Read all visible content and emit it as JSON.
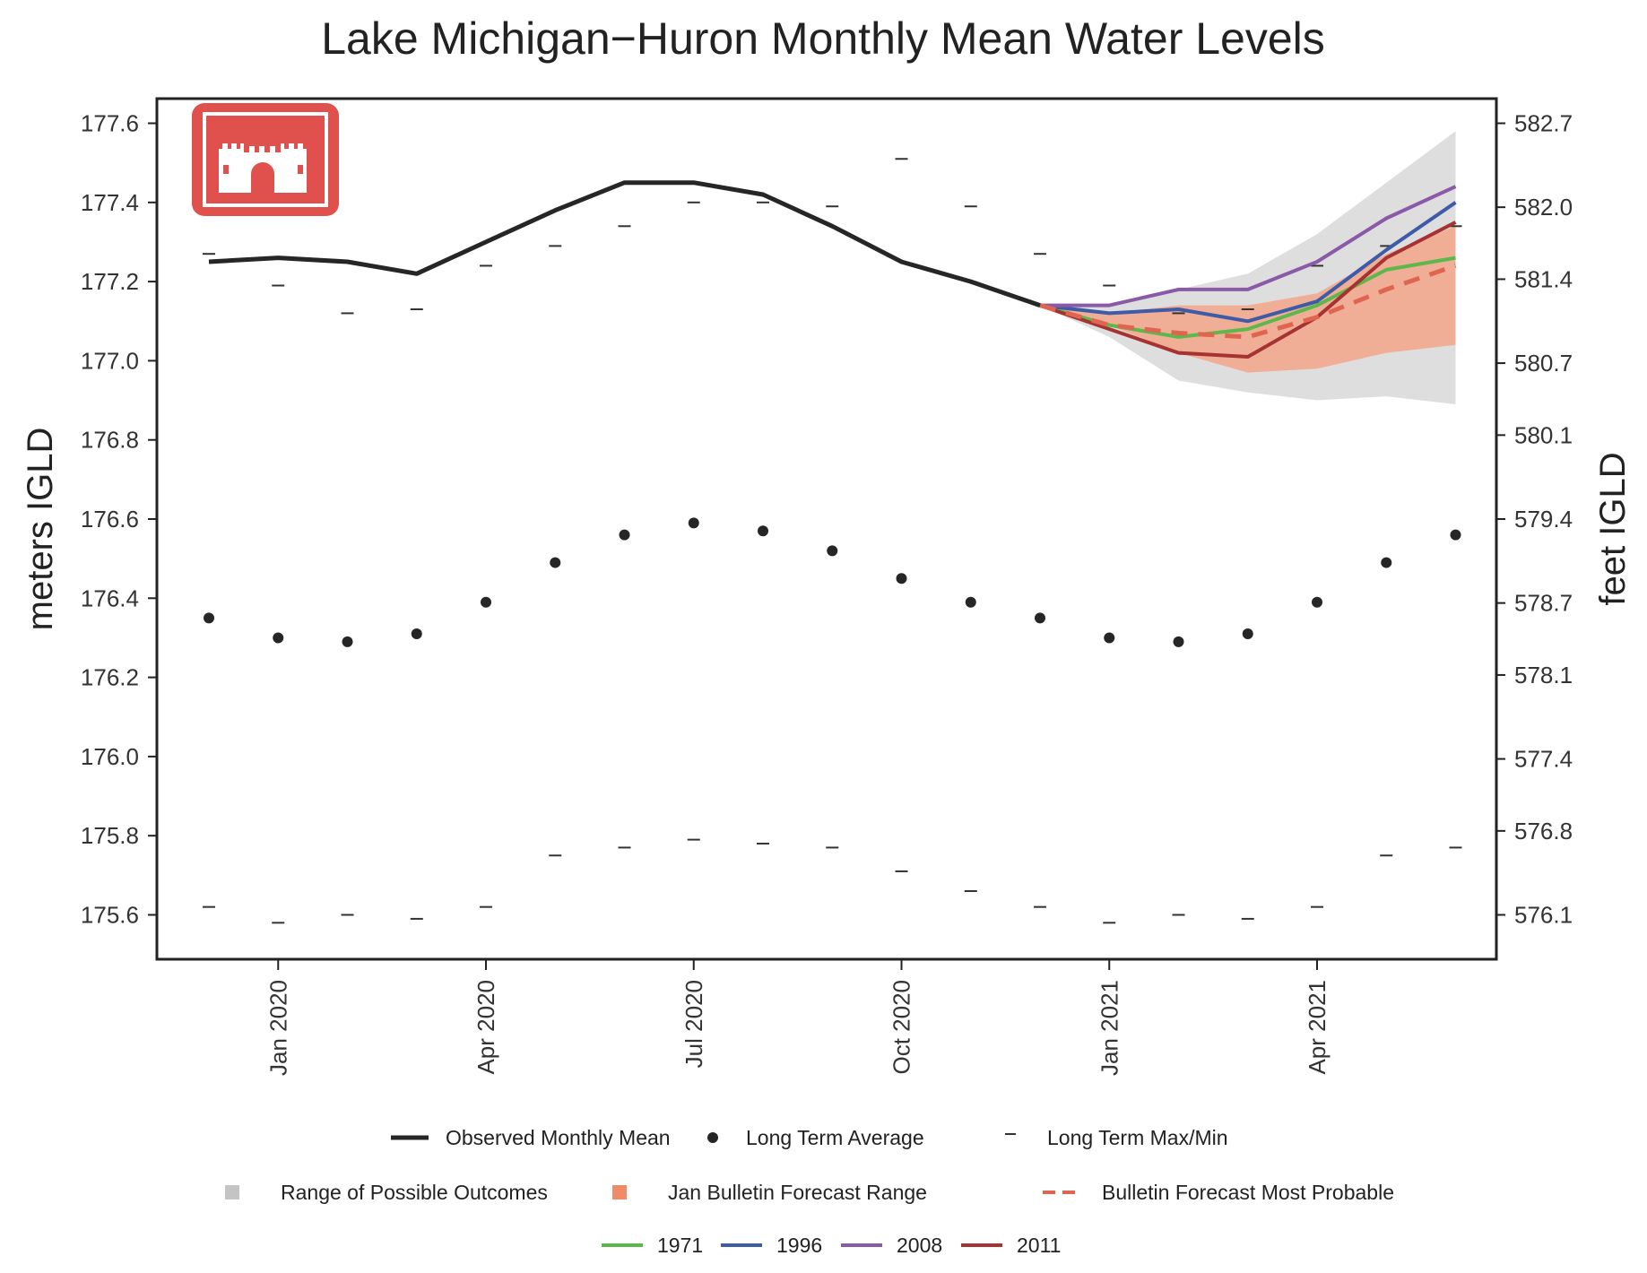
{
  "chart_data": {
    "type": "line",
    "title": "Lake Michigan−Huron Monthly Mean Water Levels",
    "ylabel_left": "meters IGLD",
    "ylabel_right": "feet IGLD",
    "ylim": [
      175.5,
      177.7
    ],
    "y_ticks_left": [
      175.6,
      175.8,
      176.0,
      176.2,
      176.4,
      176.6,
      176.8,
      177.0,
      177.2,
      177.4,
      177.6
    ],
    "y_tick_labels_left": [
      "175.6",
      "175.8",
      "176.0",
      "176.2",
      "176.4",
      "176.6",
      "176.8",
      "177.0",
      "177.2",
      "177.4",
      "177.6"
    ],
    "y_ticks_right": [
      576.1,
      576.8,
      577.4,
      578.1,
      578.7,
      579.4,
      580.1,
      580.7,
      581.4,
      582.0,
      582.7
    ],
    "y_tick_labels_right": [
      "576.1",
      "576.8",
      "577.4",
      "578.1",
      "578.7",
      "579.4",
      "580.1",
      "580.7",
      "581.4",
      "582.0",
      "582.7"
    ],
    "months": [
      "Dec 2019",
      "Jan 2020",
      "Feb 2020",
      "Mar 2020",
      "Apr 2020",
      "May 2020",
      "Jun 2020",
      "Jul 2020",
      "Aug 2020",
      "Sep 2020",
      "Oct 2020",
      "Nov 2020",
      "Dec 2020",
      "Jan 2021",
      "Feb 2021",
      "Mar 2021",
      "Apr 2021",
      "May 2021",
      "Jun 2021"
    ],
    "x_ticks": [
      {
        "month_index": 1,
        "label": "Jan 2020"
      },
      {
        "month_index": 4,
        "label": "Apr 2020"
      },
      {
        "month_index": 7,
        "label": "Jul 2020"
      },
      {
        "month_index": 10,
        "label": "Oct 2020"
      },
      {
        "month_index": 13,
        "label": "Jan 2021"
      },
      {
        "month_index": 16,
        "label": "Apr 2021"
      }
    ],
    "observed_monthly_mean": [
      177.25,
      177.26,
      177.25,
      177.22,
      177.3,
      177.38,
      177.45,
      177.45,
      177.42,
      177.34,
      177.25,
      177.2,
      177.14
    ],
    "long_term_average": [
      176.35,
      176.3,
      176.29,
      176.31,
      176.39,
      176.49,
      176.56,
      176.59,
      176.57,
      176.52,
      176.45,
      176.39,
      176.35,
      176.3,
      176.29,
      176.31,
      176.39,
      176.49,
      176.56
    ],
    "long_term_max": [
      177.27,
      177.19,
      177.12,
      177.13,
      177.24,
      177.29,
      177.34,
      177.4,
      177.4,
      177.39,
      177.51,
      177.39,
      177.27,
      177.19,
      177.12,
      177.13,
      177.24,
      177.29,
      177.34
    ],
    "long_term_min": [
      175.62,
      175.58,
      175.6,
      175.59,
      175.62,
      175.75,
      175.77,
      175.79,
      175.78,
      175.77,
      175.71,
      175.66,
      175.62,
      175.58,
      175.6,
      175.59,
      175.62,
      175.75,
      175.77
    ],
    "forecast_start_index": 12,
    "range_of_possible_outcomes": {
      "upper": [
        177.14,
        177.14,
        177.18,
        177.22,
        177.32,
        177.45,
        177.58
      ],
      "lower": [
        177.14,
        177.06,
        176.95,
        176.92,
        176.9,
        176.91,
        176.89
      ]
    },
    "bulletin_forecast_range": {
      "upper": [
        177.14,
        177.12,
        177.14,
        177.14,
        177.17,
        177.27,
        177.34
      ],
      "lower": [
        177.14,
        177.09,
        177.02,
        176.97,
        176.98,
        177.02,
        177.04
      ]
    },
    "bulletin_forecast_most_probable": [
      177.14,
      177.09,
      177.07,
      177.06,
      177.11,
      177.18,
      177.24
    ],
    "series": [
      {
        "name": "1971",
        "color": "#5cb84a",
        "values": [
          177.14,
          177.09,
          177.06,
          177.08,
          177.14,
          177.23,
          177.26
        ]
      },
      {
        "name": "1996",
        "color": "#3e5ba8",
        "values": [
          177.14,
          177.12,
          177.13,
          177.1,
          177.15,
          177.28,
          177.4
        ]
      },
      {
        "name": "2008",
        "color": "#8a5aa8",
        "values": [
          177.14,
          177.14,
          177.18,
          177.18,
          177.25,
          177.36,
          177.44
        ]
      },
      {
        "name": "2011",
        "color": "#a63232",
        "values": [
          177.14,
          177.08,
          177.02,
          177.01,
          177.11,
          177.26,
          177.35
        ]
      }
    ],
    "colors": {
      "observed": "#262626",
      "average": "#262626",
      "range_possible": "#dedede",
      "forecast_range": "#f0ae96",
      "most_probable": "#e06550",
      "logo": "#e0514e"
    },
    "legend": [
      {
        "key": "observed",
        "label": "Observed Monthly Mean"
      },
      {
        "key": "average",
        "label": "Long Term Average"
      },
      {
        "key": "maxmin",
        "label": "Long Term Max/Min"
      },
      {
        "key": "range_possible",
        "label": "Range of Possible Outcomes"
      },
      {
        "key": "forecast_range",
        "label": "Jan Bulletin Forecast Range"
      },
      {
        "key": "most_probable",
        "label": "Bulletin Forecast Most Probable"
      }
    ],
    "legend_placement": "bottom",
    "grid": false
  },
  "logo": {
    "name": "castle-icon"
  }
}
